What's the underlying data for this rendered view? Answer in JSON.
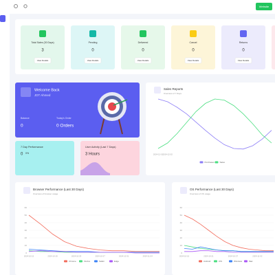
{
  "topbar": {
    "button": "Website"
  },
  "stats": [
    {
      "label": "Total Sales (30 Days)",
      "value": 3,
      "button": "View Details"
    },
    {
      "label": "Pending",
      "value": 0,
      "button": "View Details"
    },
    {
      "label": "Delivered",
      "value": 0,
      "button": "View Details"
    },
    {
      "label": "Cancel",
      "value": 0,
      "button": "View Details"
    },
    {
      "label": "Returns",
      "value": 0,
      "button": "View Details"
    }
  ],
  "welcome": {
    "title": "Welcome Back",
    "name": "JDT Ahmed",
    "balance_label": "Balance",
    "balance": 0,
    "orders_label": "Today's Order",
    "orders": "0 Orders"
  },
  "performance": {
    "label": "7 Day Performance",
    "value": 0,
    "percent": "0%"
  },
  "activity": {
    "label": "User Activity (Last 7 Days)",
    "value": "3 Hours"
  },
  "sales": {
    "type": "line",
    "title": "Sales Reports",
    "subtitle": "Overview of 7 Days",
    "x": [
      "2024-12-01",
      "2024-12-02",
      null,
      null,
      null,
      null,
      null,
      null,
      null,
      null,
      null,
      null,
      null
    ],
    "ylim": [
      0,
      10
    ],
    "series": [
      {
        "name": "Purchases",
        "color": "#8b7cf6",
        "values": [
          9.5,
          9,
          8,
          6.8,
          5.3,
          3.8,
          2.4,
          1.2,
          0.5,
          0.4,
          1,
          2.2,
          3.8
        ]
      },
      {
        "name": "Sales",
        "color": "#4ade80",
        "values": [
          0.5,
          1.5,
          3.2,
          5.2,
          7.2,
          8.7,
          9.5,
          9.3,
          8.3,
          6.8,
          5,
          3,
          1.5
        ]
      }
    ]
  },
  "browser": {
    "type": "line",
    "title": "Browser Performance (Last 30 Days)",
    "subtitle": "Overview of browser usage",
    "x": [
      "2024-10-15",
      null,
      "2024-10-19",
      null,
      "2024-10-23",
      null,
      "2024-10-27",
      null,
      "2024-10-31",
      null,
      "2024-11-04",
      null
    ],
    "ylim": [
      0,
      60
    ],
    "yticks": [
      0,
      10,
      20,
      30,
      40,
      50,
      60
    ],
    "series": [
      {
        "name": "Chrome",
        "color": "#f26b5b",
        "values": [
          50,
          38,
          25,
          15,
          9,
          6,
          4,
          3,
          3,
          2,
          2,
          2
        ]
      },
      {
        "name": "Firefox",
        "color": "#4ade80",
        "values": [
          3,
          2,
          2,
          1,
          1,
          1,
          1,
          1,
          1,
          1,
          1,
          1
        ]
      },
      {
        "name": "Safari",
        "color": "#3b82f6",
        "values": [
          5,
          4,
          3,
          2,
          2,
          2,
          1,
          1,
          1,
          1,
          1,
          1
        ]
      },
      {
        "name": "Edge",
        "color": "#a855f7",
        "values": [
          2,
          3,
          2,
          2,
          1,
          1,
          1,
          1,
          1,
          0,
          0,
          0
        ]
      }
    ]
  },
  "os": {
    "type": "line",
    "title": "OS Performance (Last 30 Days)",
    "subtitle": "Overview of OS usage",
    "x": [
      "2024-10-15",
      null,
      null,
      "2024-10-21",
      null,
      null,
      "2024-10-27",
      null,
      null,
      "2024-11-02",
      null,
      null
    ],
    "ylim": [
      0,
      60
    ],
    "yticks": [
      0,
      10,
      20,
      30,
      40,
      50,
      60
    ],
    "series": [
      {
        "name": "Android",
        "color": "#f26b5b",
        "values": [
          50,
          45,
          38,
          30,
          22,
          15,
          10,
          7,
          5,
          4,
          3,
          3
        ]
      },
      {
        "name": "iOS",
        "color": "#4ade80",
        "values": [
          10,
          8,
          6,
          5,
          4,
          3,
          3,
          2,
          2,
          2,
          2,
          2
        ]
      },
      {
        "name": "Windows",
        "color": "#3b82f6",
        "values": [
          6,
          5,
          8,
          6,
          4,
          3,
          3,
          2,
          2,
          2,
          2,
          2
        ]
      },
      {
        "name": "Mac",
        "color": "#a855f7",
        "values": [
          2,
          2,
          3,
          3,
          2,
          2,
          1,
          1,
          1,
          1,
          1,
          1
        ]
      }
    ]
  }
}
